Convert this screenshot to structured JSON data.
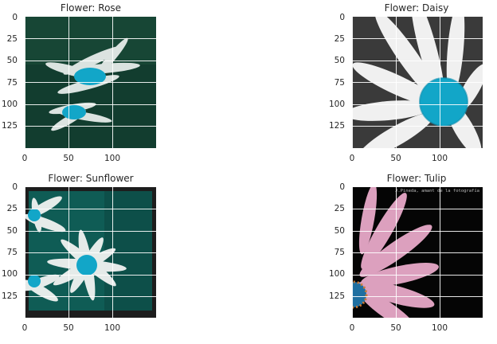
{
  "figure": {
    "panels": [
      {
        "id": "rose",
        "title": "Flower: Rose",
        "yticks": [
          "0",
          "25",
          "50",
          "75",
          "100",
          "125"
        ],
        "xticks": [
          "0",
          "50",
          "100"
        ],
        "image_desc_icon": "white-daisies-blue-center-icon",
        "palette": {
          "bg": "#123d2f",
          "petal": "#e6ecea",
          "center": "#12a6c8"
        }
      },
      {
        "id": "daisy",
        "title": "Flower: Daisy",
        "yticks": [
          "0",
          "25",
          "50",
          "75",
          "100",
          "125"
        ],
        "xticks": [
          "0",
          "50",
          "100"
        ],
        "image_desc_icon": "daisy-closeup-icon",
        "palette": {
          "bg": "#3a3a3a",
          "petal": "#f0f0f0",
          "center": "#12a6c8"
        }
      },
      {
        "id": "sunflower",
        "title": "Flower: Sunflower",
        "yticks": [
          "0",
          "25",
          "50",
          "75",
          "100",
          "125"
        ],
        "xticks": [
          "0",
          "50",
          "100"
        ],
        "image_desc_icon": "daisies-teal-bg-icon",
        "palette": {
          "bg": "#0f5c55",
          "petal": "#eef1f0",
          "center": "#12a6c8",
          "border": "#1d1d1d"
        }
      },
      {
        "id": "tulip",
        "title": "Flower: Tulip",
        "yticks": [
          "0",
          "25",
          "50",
          "75",
          "100",
          "125"
        ],
        "xticks": [
          "0",
          "50",
          "100"
        ],
        "image_desc_icon": "pink-petals-dark-bg-icon",
        "caption": "J.Pineda, amant de la fotografía",
        "palette": {
          "bg": "#050505",
          "petal": "#e8a9c8",
          "center": "#1f6fa0"
        }
      }
    ]
  }
}
